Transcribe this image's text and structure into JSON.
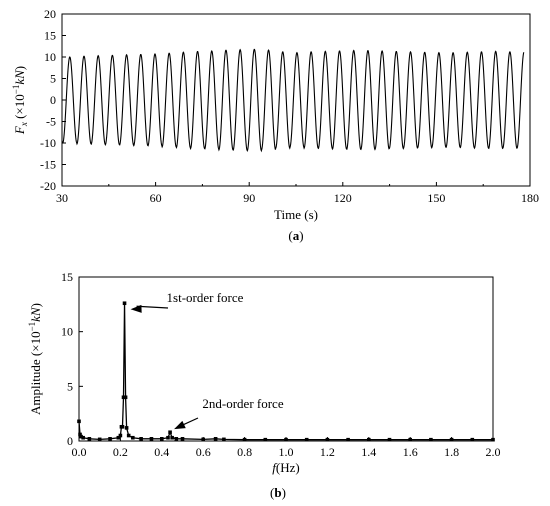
{
  "chart_data": [
    {
      "type": "line",
      "panel": "a",
      "caption": "(a)",
      "xlabel": "Time (s)",
      "ylabel": "F_x (×10⁻¹kN)",
      "ylabel_parts": {
        "sym": "F",
        "sub": "x",
        "pre": " (×10",
        "sup": "−1",
        "unit": "kN",
        "post": ")"
      },
      "xlim": [
        30,
        180
      ],
      "ylim": [
        -20,
        20
      ],
      "xticks": [
        30,
        60,
        90,
        120,
        150,
        180
      ],
      "yticks": [
        -20,
        -15,
        -10,
        -5,
        0,
        5,
        10,
        15,
        20
      ],
      "series": [
        {
          "period_s": 4.55,
          "x_start": 30,
          "x_end": 178,
          "peaks_x": [
            32.5,
            37.0,
            41.6,
            46.1,
            50.7,
            55.2,
            59.8,
            64.3,
            68.9,
            73.4,
            78.0,
            82.5,
            87.1,
            91.6,
            96.2,
            100.7,
            105.3,
            109.8,
            114.4,
            118.9,
            123.5,
            128.0,
            132.6,
            137.1,
            141.7,
            146.2,
            150.8,
            155.3,
            159.9,
            164.4,
            169.0,
            173.5
          ],
          "peaks_y": [
            10.0,
            10.2,
            10.3,
            10.4,
            10.5,
            10.6,
            10.7,
            10.9,
            11.1,
            11.3,
            11.4,
            11.6,
            11.7,
            11.8,
            11.6,
            11.2,
            11.0,
            11.2,
            11.3,
            11.4,
            11.5,
            11.5,
            11.4,
            11.3,
            11.2,
            11.1,
            11.0,
            11.0,
            11.1,
            11.2,
            11.3,
            11.2
          ],
          "troughs_y": [
            -10.0,
            -10.2,
            -10.3,
            -10.4,
            -10.5,
            -10.6,
            -10.7,
            -10.9,
            -11.1,
            -11.3,
            -11.4,
            -11.6,
            -11.7,
            -11.8,
            -11.6,
            -11.2,
            -11.0,
            -11.2,
            -11.3,
            -11.4,
            -11.5,
            -11.5,
            -11.4,
            -11.3,
            -11.2,
            -11.1,
            -11.0,
            -11.0,
            -11.1,
            -11.2,
            -11.3,
            -11.2
          ]
        }
      ]
    },
    {
      "type": "line",
      "panel": "b",
      "caption": "(b)",
      "xlabel": "f(Hz)",
      "xlabel_parts": {
        "sym": "f",
        "rest": "(Hz)"
      },
      "ylabel": "Amplitude (×10⁻¹kN)",
      "ylabel_parts": {
        "pre": "Amplitude (×10",
        "sup": "−1",
        "unit": "kN",
        "post": ")"
      },
      "xlim": [
        0.0,
        2.0
      ],
      "ylim": [
        0,
        15
      ],
      "xticks": [
        "0.0",
        "0.2",
        "0.4",
        "0.6",
        "0.8",
        "1.0",
        "1.2",
        "1.4",
        "1.6",
        "1.8",
        "2.0"
      ],
      "yticks": [
        0,
        5,
        10,
        15
      ],
      "series": [
        {
          "x": [
            0.0,
            0.005,
            0.01,
            0.02,
            0.05,
            0.1,
            0.15,
            0.19,
            0.2,
            0.205,
            0.21,
            0.215,
            0.22,
            0.225,
            0.23,
            0.24,
            0.26,
            0.3,
            0.35,
            0.4,
            0.43,
            0.44,
            0.45,
            0.47,
            0.5,
            0.6,
            0.66,
            0.7,
            0.8,
            0.9,
            1.0,
            1.1,
            1.2,
            1.3,
            1.4,
            1.5,
            1.6,
            1.7,
            1.8,
            1.9,
            2.0
          ],
          "y": [
            1.8,
            0.6,
            0.4,
            0.3,
            0.2,
            0.15,
            0.2,
            0.3,
            0.5,
            1.3,
            1.3,
            4.0,
            12.6,
            4.0,
            1.2,
            0.5,
            0.3,
            0.2,
            0.2,
            0.2,
            0.3,
            0.8,
            0.3,
            0.2,
            0.2,
            0.15,
            0.2,
            0.15,
            0.12,
            0.12,
            0.12,
            0.12,
            0.12,
            0.12,
            0.12,
            0.12,
            0.12,
            0.12,
            0.12,
            0.12,
            0.12
          ]
        }
      ],
      "annotations": [
        {
          "text": "1st-order force",
          "target_x": 0.22,
          "target_y": 12.6
        },
        {
          "text": "2nd-order force",
          "target_x": 0.44,
          "target_y": 0.9
        }
      ]
    }
  ]
}
